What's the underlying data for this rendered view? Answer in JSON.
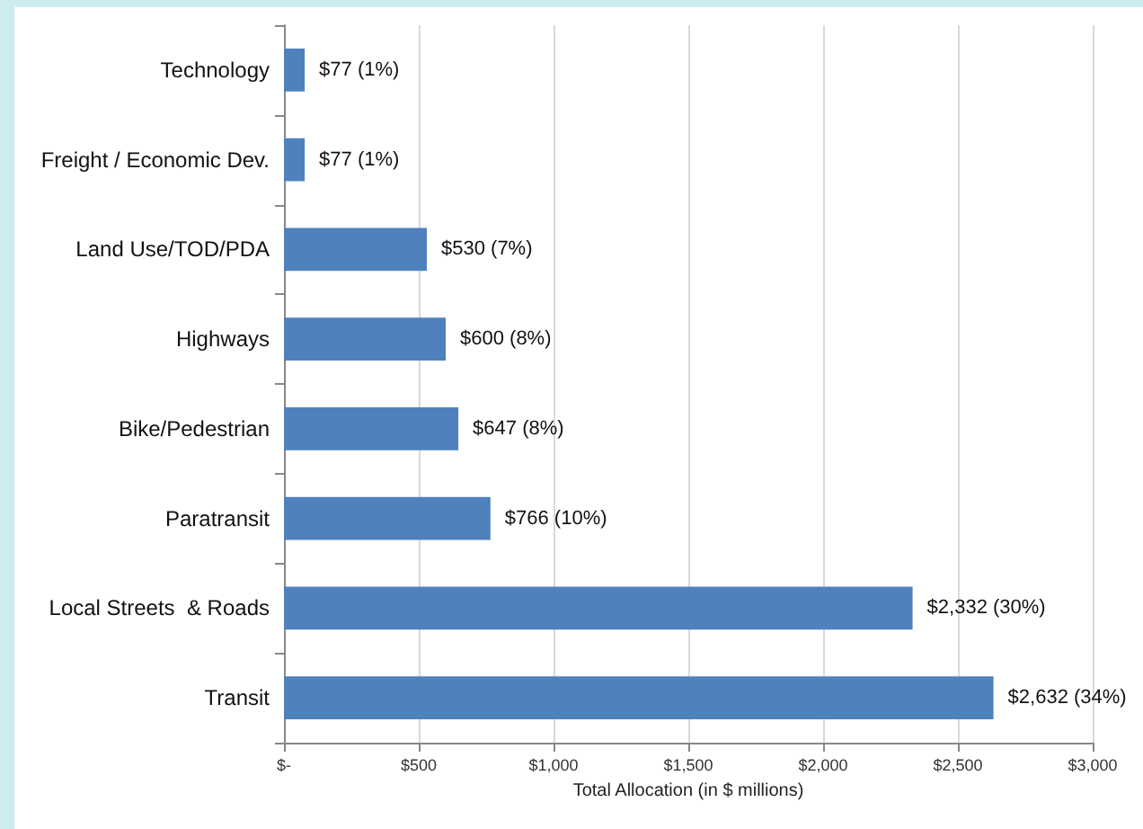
{
  "chart_data": {
    "type": "bar",
    "orientation": "horizontal",
    "xlabel": "Total Allocation (in $ millions)",
    "categories": [
      "Technology",
      "Freight / Economic Dev.",
      "Land Use/TOD/PDA",
      "Highways",
      "Bike/Pedestrian",
      "Paratransit",
      "Local Streets  & Roads",
      "Transit"
    ],
    "values": [
      77,
      77,
      530,
      600,
      647,
      766,
      2332,
      2632
    ],
    "value_labels": [
      "$77 (1%)",
      "$77 (1%)",
      "$530 (7%)",
      "$600 (8%)",
      "$647 (8%)",
      "$766 (10%)",
      "$2,332 (30%)",
      "$2,632 (34%)"
    ],
    "color": "#4f81bd",
    "xlim": [
      0,
      3000
    ],
    "xticks": [
      {
        "value": 0,
        "label": "$-"
      },
      {
        "value": 500,
        "label": "$500"
      },
      {
        "value": 1000,
        "label": "$1,000"
      },
      {
        "value": 1500,
        "label": "$1,500"
      },
      {
        "value": 2000,
        "label": "$2,000"
      },
      {
        "value": 2500,
        "label": "$2,500"
      },
      {
        "value": 3000,
        "label": "$3,000"
      }
    ],
    "grid": "x"
  }
}
